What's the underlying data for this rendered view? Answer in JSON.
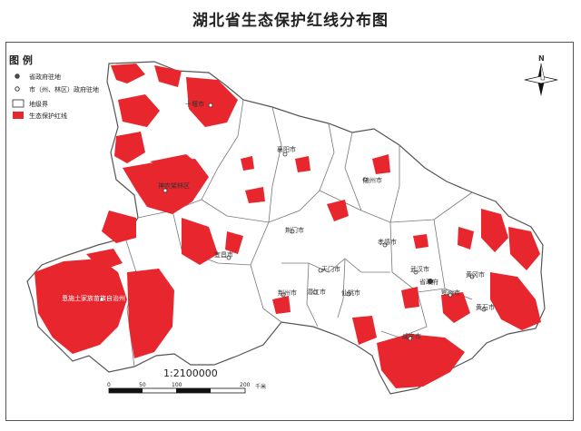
{
  "title": "湖北省生态保护红线分布图",
  "legend": {
    "title": "图 例",
    "items": [
      {
        "label": "省政府驻地",
        "symbol": "capital-dot"
      },
      {
        "label": "市（州、林区）政府驻地",
        "symbol": "city-dot"
      },
      {
        "label": "地级界",
        "symbol": "boundary-box"
      },
      {
        "label": "生态保护红线",
        "symbol": "red-fill"
      }
    ]
  },
  "north_arrow": {
    "label": "N"
  },
  "places": [
    {
      "name": "十堰市"
    },
    {
      "name": "襄阳市"
    },
    {
      "name": "随州市"
    },
    {
      "name": "神农架林区"
    },
    {
      "name": "荆门市"
    },
    {
      "name": "孝感市"
    },
    {
      "name": "宜昌市"
    },
    {
      "name": "天门市"
    },
    {
      "name": "荆州市"
    },
    {
      "name": "潜江市"
    },
    {
      "name": "仙桃市"
    },
    {
      "name": "武汉市"
    },
    {
      "name": "省政府"
    },
    {
      "name": "黄冈市"
    },
    {
      "name": "鄂州市"
    },
    {
      "name": "黄石市"
    },
    {
      "name": "咸宁市"
    },
    {
      "name": "恩施土家族苗族自治州"
    }
  ],
  "scale": {
    "ratio": "1:2100000",
    "ticks": [
      "0",
      "50",
      "100",
      "200"
    ],
    "unit": "千米"
  },
  "colors": {
    "redline": "#e8262d",
    "boundary": "#666666",
    "land": "#ffffff"
  }
}
